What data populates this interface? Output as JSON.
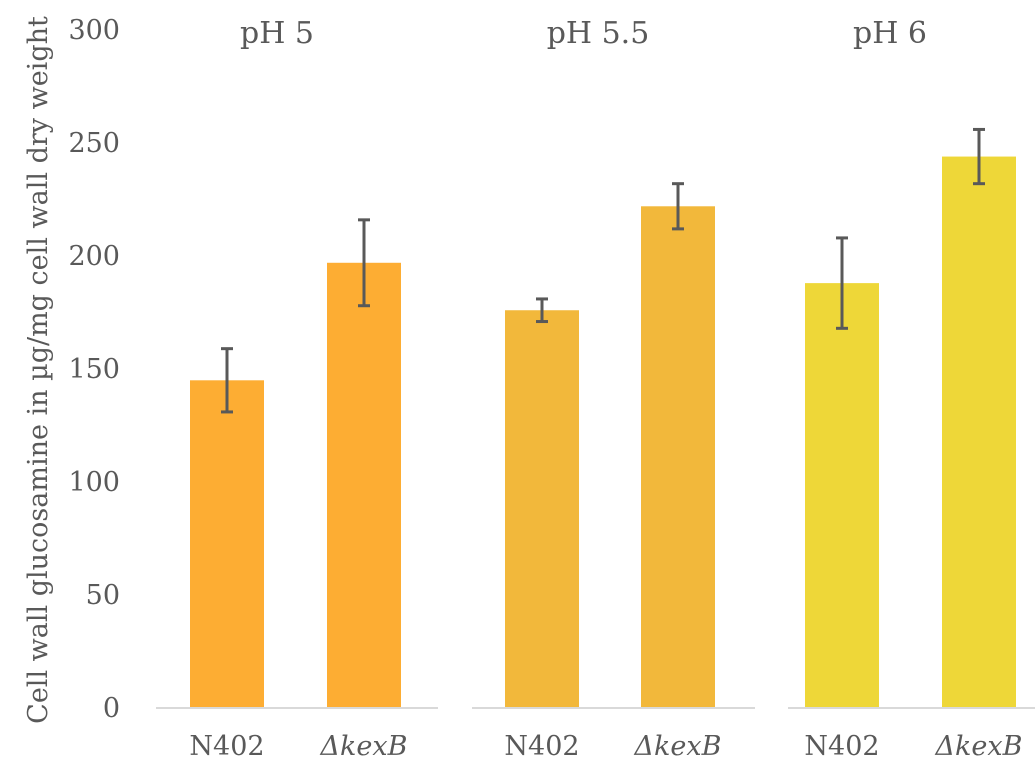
{
  "chart_data": {
    "type": "bar",
    "ylabel": "Cell wall glucosamine in µg/mg cell wall dry weight",
    "ylim": [
      0,
      300
    ],
    "yticks": [
      0,
      50,
      100,
      150,
      200,
      250,
      300
    ],
    "grid": false,
    "categories": [
      "N402",
      "ΔkexB"
    ],
    "panels": [
      {
        "title": "pH 5",
        "color": "#FDAD33",
        "values": [
          145,
          197
        ],
        "errors": [
          14,
          19
        ]
      },
      {
        "title": "pH 5.5",
        "color": "#F2B83B",
        "values": [
          176,
          222
        ],
        "errors": [
          5,
          10
        ]
      },
      {
        "title": "pH 6",
        "color": "#EED738",
        "values": [
          188,
          244
        ],
        "errors": [
          20,
          12
        ]
      }
    ]
  },
  "colors": {
    "axis_line": "#d9d9d9",
    "error_bar": "#595959",
    "text": "#595959"
  }
}
